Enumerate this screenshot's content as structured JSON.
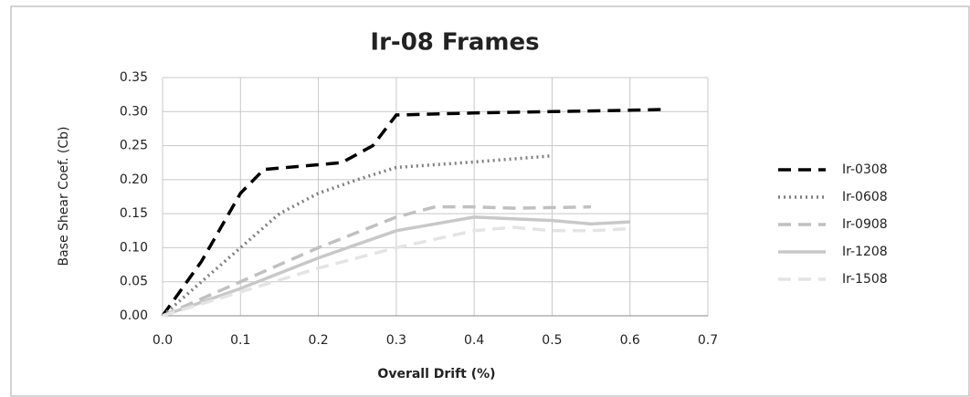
{
  "chart_data": {
    "type": "line",
    "title": "Ir-08 Frames",
    "xlabel": "Overall Drift (%)",
    "ylabel": "Base Shear Coef. (Cb)",
    "xlim": [
      0,
      0.7
    ],
    "ylim": [
      0,
      0.35
    ],
    "xticks": [
      {
        "value": 0,
        "label": "0.0"
      },
      {
        "value": 0.1,
        "label": "0.1"
      },
      {
        "value": 0.2,
        "label": "0.2"
      },
      {
        "value": 0.3,
        "label": "0.3"
      },
      {
        "value": 0.4,
        "label": "0.4"
      },
      {
        "value": 0.5,
        "label": "0.5"
      },
      {
        "value": 0.6,
        "label": "0.6"
      },
      {
        "value": 0.7,
        "label": "0.7"
      }
    ],
    "yticks": [
      {
        "value": 0,
        "label": "0.00"
      },
      {
        "value": 0.05,
        "label": "0.05"
      },
      {
        "value": 0.1,
        "label": "0.10"
      },
      {
        "value": 0.15,
        "label": "0.15"
      },
      {
        "value": 0.2,
        "label": "0.20"
      },
      {
        "value": 0.25,
        "label": "0.25"
      },
      {
        "value": 0.3,
        "label": "0.30"
      },
      {
        "value": 0.35,
        "label": "0.35"
      }
    ],
    "grid": true,
    "legend": "right",
    "series": [
      {
        "name": "Ir-0308",
        "color": "#000000",
        "dash": "dashed",
        "x": [
          0,
          0.05,
          0.1,
          0.13,
          0.2,
          0.23,
          0.27,
          0.3,
          0.4,
          0.5,
          0.6,
          0.64
        ],
        "values": [
          0,
          0.08,
          0.18,
          0.215,
          0.222,
          0.225,
          0.25,
          0.295,
          0.298,
          0.3,
          0.302,
          0.303
        ]
      },
      {
        "name": "Ir-0608",
        "color": "#808080",
        "dash": "dotted",
        "x": [
          0,
          0.05,
          0.1,
          0.15,
          0.2,
          0.25,
          0.3,
          0.4,
          0.5
        ],
        "values": [
          0,
          0.05,
          0.1,
          0.15,
          0.18,
          0.2,
          0.218,
          0.226,
          0.235
        ]
      },
      {
        "name": "Ir-0908",
        "color": "#c0c0c0",
        "dash": "dashed",
        "x": [
          0,
          0.1,
          0.2,
          0.3,
          0.35,
          0.4,
          0.45,
          0.55
        ],
        "values": [
          0,
          0.05,
          0.1,
          0.145,
          0.16,
          0.16,
          0.158,
          0.16
        ]
      },
      {
        "name": "Ir-1208",
        "color": "#c8c8c8",
        "dash": "solid",
        "x": [
          0,
          0.1,
          0.2,
          0.3,
          0.4,
          0.5,
          0.55,
          0.6
        ],
        "values": [
          0,
          0.04,
          0.085,
          0.125,
          0.145,
          0.14,
          0.135,
          0.138
        ]
      },
      {
        "name": "Ir-1508",
        "color": "#e4e4e4",
        "dash": "dashed",
        "x": [
          0,
          0.1,
          0.2,
          0.3,
          0.4,
          0.45,
          0.5,
          0.55,
          0.6
        ],
        "values": [
          0,
          0.035,
          0.07,
          0.1,
          0.125,
          0.13,
          0.125,
          0.125,
          0.128
        ]
      }
    ]
  }
}
